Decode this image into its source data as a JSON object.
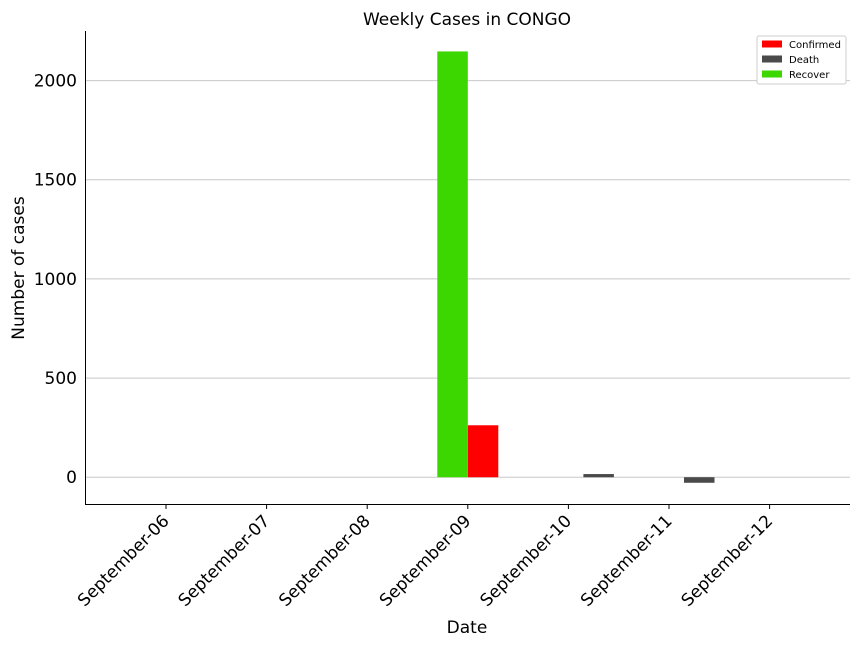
{
  "chart_data": {
    "type": "bar",
    "title": "Weekly Cases in CONGO",
    "xlabel": "Date",
    "ylabel": "Number of cases",
    "categories": [
      "September-06",
      "September-07",
      "September-08",
      "September-09",
      "September-10",
      "September-11",
      "September-12"
    ],
    "series": [
      {
        "name": "Confirmed",
        "color": "#ff0000",
        "values": [
          0,
          0,
          0,
          262,
          0,
          0,
          0
        ]
      },
      {
        "name": "Death",
        "color": "#4a4a4a",
        "values": [
          0,
          0,
          0,
          0,
          16,
          -28,
          0
        ]
      },
      {
        "name": "Recover",
        "color": "#3cd600",
        "values": [
          0,
          0,
          0,
          2147,
          0,
          0,
          0
        ]
      }
    ],
    "ylim": [
      -135,
      2250
    ],
    "yticks": [
      0,
      500,
      1000,
      1500,
      2000
    ],
    "grid": "horizontal",
    "legend": "top-right"
  }
}
